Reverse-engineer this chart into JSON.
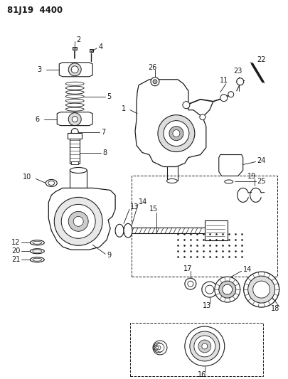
{
  "title": "81J19  4400",
  "bg": "#ffffff",
  "lc": "#1a1a1a",
  "figsize": [
    4.06,
    5.33
  ],
  "dpi": 100
}
